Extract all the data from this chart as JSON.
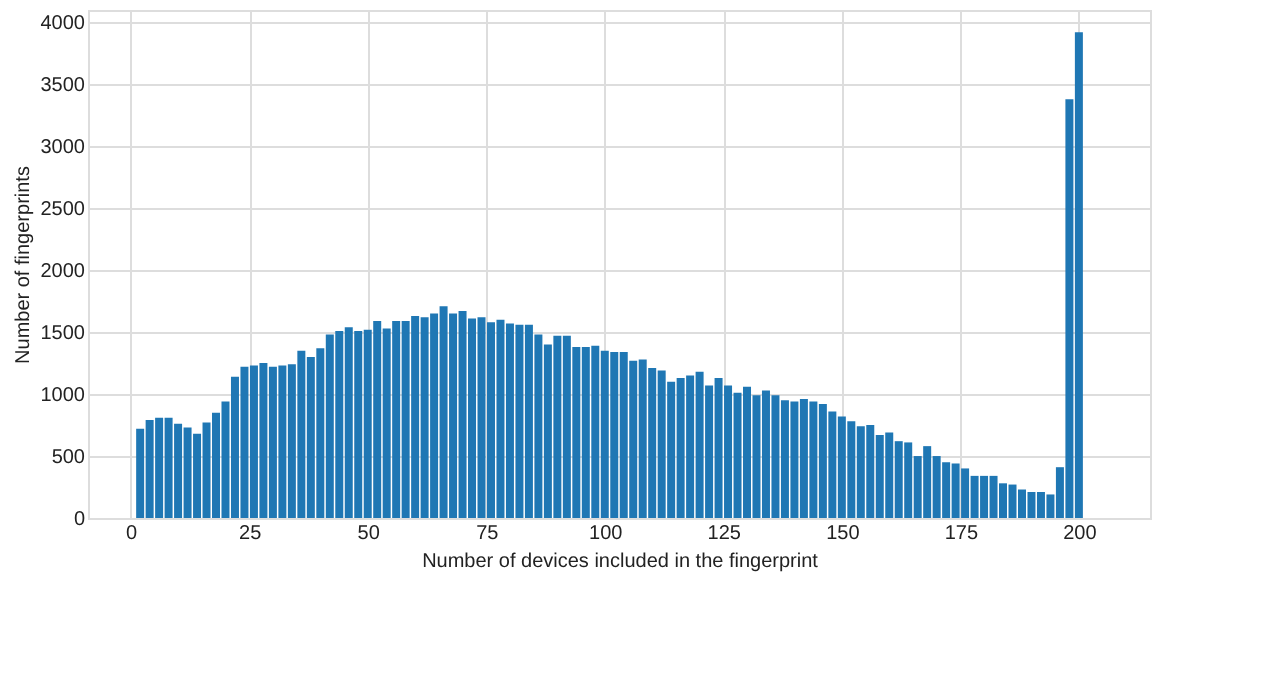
{
  "chart_data": {
    "type": "bar",
    "xlabel": "Number of devices included in the fingerprint",
    "ylabel": "Number of fingerprints",
    "x": [
      2,
      4,
      6,
      8,
      10,
      12,
      14,
      16,
      18,
      20,
      22,
      24,
      26,
      28,
      30,
      32,
      34,
      36,
      38,
      40,
      42,
      44,
      46,
      48,
      50,
      52,
      54,
      56,
      58,
      60,
      62,
      64,
      66,
      68,
      70,
      72,
      74,
      76,
      78,
      80,
      82,
      84,
      86,
      88,
      90,
      92,
      94,
      96,
      98,
      100,
      102,
      104,
      106,
      108,
      110,
      112,
      114,
      116,
      118,
      120,
      122,
      124,
      126,
      128,
      130,
      132,
      134,
      136,
      138,
      140,
      142,
      144,
      146,
      148,
      150,
      152,
      154,
      156,
      158,
      160,
      162,
      164,
      166,
      168,
      170,
      172,
      174,
      176,
      178,
      180,
      182,
      184,
      186,
      188,
      190,
      192,
      194,
      196,
      198,
      200
    ],
    "values": [
      720,
      790,
      810,
      810,
      760,
      730,
      680,
      770,
      850,
      940,
      1140,
      1220,
      1230,
      1250,
      1220,
      1230,
      1240,
      1350,
      1300,
      1370,
      1480,
      1510,
      1540,
      1510,
      1520,
      1590,
      1530,
      1590,
      1590,
      1630,
      1620,
      1650,
      1710,
      1650,
      1670,
      1610,
      1620,
      1580,
      1600,
      1570,
      1560,
      1560,
      1480,
      1400,
      1470,
      1470,
      1380,
      1380,
      1390,
      1350,
      1340,
      1340,
      1270,
      1280,
      1210,
      1190,
      1100,
      1130,
      1150,
      1180,
      1070,
      1130,
      1070,
      1010,
      1060,
      990,
      1030,
      990,
      950,
      940,
      960,
      940,
      920,
      860,
      820,
      780,
      740,
      750,
      670,
      690,
      620,
      610,
      500,
      580,
      500,
      450,
      440,
      400,
      340,
      340,
      340,
      280,
      270,
      230,
      210,
      210,
      190,
      410,
      3380,
      3920
    ],
    "color": "#1f77b4",
    "xlim": [
      -9,
      215
    ],
    "xticks": [
      0,
      25,
      50,
      75,
      100,
      125,
      150,
      175,
      200
    ],
    "ylim": [
      0,
      4100
    ],
    "yticks": [
      0,
      500,
      1000,
      1500,
      2000,
      2500,
      3000,
      3500,
      4000
    ],
    "grid": true
  }
}
